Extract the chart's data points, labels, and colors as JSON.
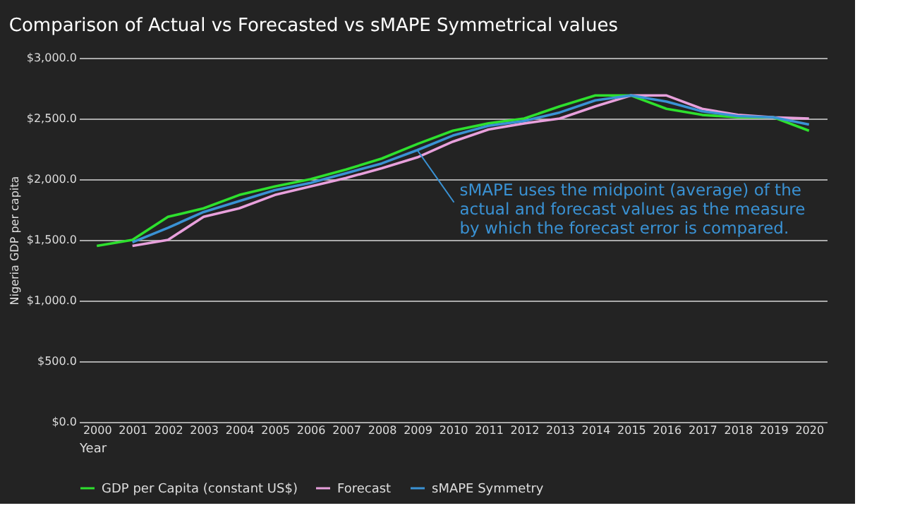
{
  "chart_data": {
    "type": "line",
    "title": "Comparison of Actual vs Forecasted vs sMAPE Symmetrical values",
    "xlabel": "Year",
    "ylabel": "Nigeria GDP per capita",
    "categories": [
      "2000",
      "2001",
      "2002",
      "2003",
      "2004",
      "2005",
      "2006",
      "2007",
      "2008",
      "2009",
      "2010",
      "2011",
      "2012",
      "2013",
      "2014",
      "2015",
      "2016",
      "2017",
      "2018",
      "2019",
      "2020"
    ],
    "series": [
      {
        "name": "GDP per Capita (constant US$)",
        "color": "#2ee02e",
        "values": [
          1450,
          1500,
          1690,
          1760,
          1870,
          1940,
          2000,
          2080,
          2170,
          2290,
          2400,
          2460,
          2500,
          2600,
          2690,
          2690,
          2580,
          2530,
          2510,
          2510,
          2400
        ]
      },
      {
        "name": "Forecast",
        "color": "#e8a0dc",
        "values": [
          null,
          1450,
          1500,
          1690,
          1760,
          1870,
          1940,
          2010,
          2090,
          2180,
          2310,
          2410,
          2460,
          2500,
          2600,
          2690,
          2690,
          2580,
          2530,
          2510,
          2500
        ]
      },
      {
        "name": "sMAPE Symmetry",
        "color": "#3a92d4",
        "values": [
          null,
          1480,
          1600,
          1730,
          1820,
          1910,
          1970,
          2050,
          2130,
          2240,
          2360,
          2440,
          2480,
          2550,
          2650,
          2690,
          2640,
          2560,
          2520,
          2510,
          2450
        ]
      }
    ],
    "ylim": [
      0,
      3000
    ],
    "yticks": [
      {
        "value": 0,
        "label": "$0.0"
      },
      {
        "value": 500,
        "label": "$500.0"
      },
      {
        "value": 1000,
        "label": "$1,000.0"
      },
      {
        "value": 1500,
        "label": "$1,500.0"
      },
      {
        "value": 2000,
        "label": "$2,000.0"
      },
      {
        "value": 2500,
        "label": "$2,500.0"
      },
      {
        "value": 3000,
        "label": "$3,000.0"
      }
    ],
    "annotations": [
      {
        "text": "sMAPE uses the midpoint (average) of the\nactual and forecast values as the measure\nby which the forecast error is compared.",
        "x": "2009",
        "y": 2240
      }
    ],
    "grid": "y",
    "legend": "bottom",
    "marker": "none",
    "line_style": "solid"
  }
}
